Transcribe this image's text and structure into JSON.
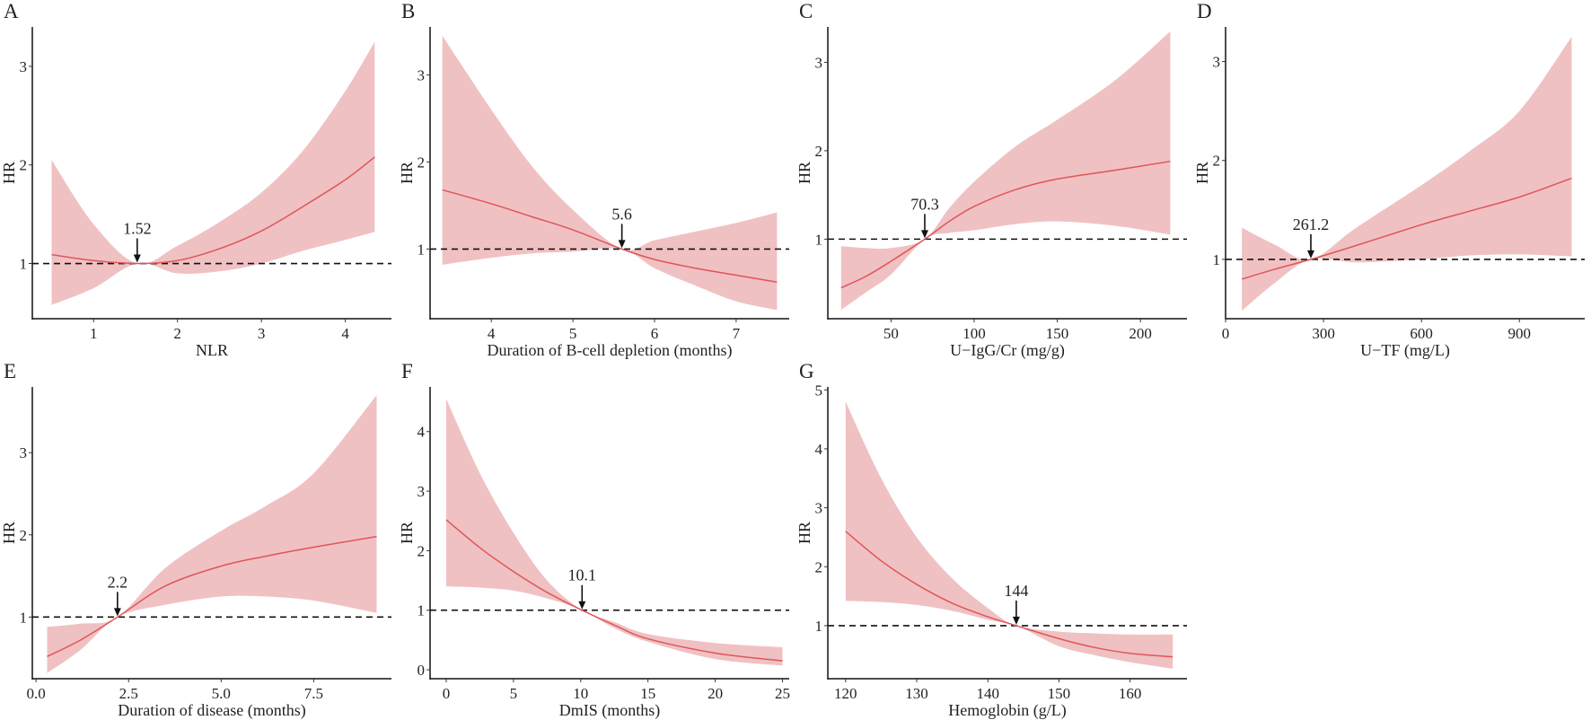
{
  "colors": {
    "band": "#f0c1c3",
    "line": "#e05558",
    "axis": "#111111"
  },
  "chart_data": [
    {
      "type": "line",
      "panel": "A",
      "xlabel": "NLR",
      "ylabel": "HR",
      "xlim": [
        0.27,
        4.55
      ],
      "ylim": [
        0.44,
        3.4
      ],
      "xticks": [
        1,
        2,
        3,
        4
      ],
      "xtick_labels": [
        "1",
        "2",
        "3",
        "4"
      ],
      "yticks": [
        1,
        2,
        3
      ],
      "ytick_labels": [
        "1",
        "2",
        "3"
      ],
      "reference": {
        "x": 1.52,
        "label": "1.52"
      },
      "x": [
        0.5,
        1.0,
        1.52,
        2.0,
        2.5,
        3.0,
        3.5,
        4.0,
        4.35
      ],
      "hr": [
        1.09,
        1.03,
        1.0,
        1.03,
        1.15,
        1.33,
        1.58,
        1.85,
        2.08
      ],
      "lower": [
        0.58,
        0.75,
        1.0,
        0.9,
        0.92,
        1.0,
        1.13,
        1.24,
        1.32
      ],
      "upper": [
        2.05,
        1.4,
        1.0,
        1.18,
        1.42,
        1.72,
        2.15,
        2.75,
        3.25
      ]
    },
    {
      "type": "line",
      "panel": "B",
      "xlabel": "Duration of B-cell depletion (months)",
      "ylabel": "HR",
      "xlim": [
        3.25,
        7.65
      ],
      "ylim": [
        0.2,
        3.55
      ],
      "xticks": [
        4,
        5,
        6,
        7
      ],
      "xtick_labels": [
        "4",
        "5",
        "6",
        "7"
      ],
      "yticks": [
        1,
        2,
        3
      ],
      "ytick_labels": [
        "1",
        "2",
        "3"
      ],
      "reference": {
        "x": 5.6,
        "label": "5.6"
      },
      "x": [
        3.4,
        4.0,
        4.5,
        5.0,
        5.6,
        6.0,
        6.5,
        7.0,
        7.5
      ],
      "hr": [
        1.68,
        1.52,
        1.37,
        1.22,
        1.0,
        0.88,
        0.78,
        0.7,
        0.62
      ],
      "lower": [
        0.82,
        0.9,
        0.95,
        0.97,
        1.0,
        0.78,
        0.58,
        0.4,
        0.3
      ],
      "upper": [
        3.45,
        2.6,
        1.95,
        1.45,
        1.0,
        1.1,
        1.2,
        1.3,
        1.42
      ]
    },
    {
      "type": "line",
      "panel": "C",
      "xlabel": "U−IgG/Cr (mg/g)",
      "ylabel": "HR",
      "xlim": [
        12,
        228
      ],
      "ylim": [
        0.1,
        3.4
      ],
      "xticks": [
        50,
        100,
        150,
        200
      ],
      "xtick_labels": [
        "50",
        "100",
        "150",
        "200"
      ],
      "yticks": [
        1,
        2,
        3
      ],
      "ytick_labels": [
        "1",
        "2",
        "3"
      ],
      "reference": {
        "x": 70.3,
        "label": "70.3"
      },
      "x": [
        20,
        35,
        50,
        70.3,
        85,
        100,
        125,
        150,
        185,
        218
      ],
      "hr": [
        0.45,
        0.58,
        0.75,
        1.0,
        1.2,
        1.37,
        1.56,
        1.68,
        1.78,
        1.88
      ],
      "lower": [
        0.2,
        0.4,
        0.6,
        1.0,
        1.07,
        1.1,
        1.17,
        1.2,
        1.15,
        1.05
      ],
      "upper": [
        0.92,
        0.9,
        0.9,
        1.0,
        1.35,
        1.65,
        2.05,
        2.35,
        2.8,
        3.35
      ]
    },
    {
      "type": "line",
      "panel": "D",
      "xlabel": "U−TF (mg/L)",
      "ylabel": "HR",
      "xlim": [
        0,
        1100
      ],
      "ylim": [
        0.4,
        3.35
      ],
      "xticks": [
        0,
        300,
        600,
        900
      ],
      "xtick_labels": [
        "0",
        "300",
        "600",
        "900"
      ],
      "yticks": [
        1,
        2,
        3
      ],
      "ytick_labels": [
        "1",
        "2",
        "3"
      ],
      "reference": {
        "x": 261.2,
        "label": "261.2"
      },
      "x": [
        50,
        150,
        261.2,
        400,
        600,
        750,
        900,
        1060
      ],
      "hr": [
        0.8,
        0.9,
        1.0,
        1.14,
        1.35,
        1.49,
        1.63,
        1.82
      ],
      "lower": [
        0.48,
        0.76,
        1.0,
        0.97,
        1.0,
        1.04,
        1.05,
        1.03
      ],
      "upper": [
        1.32,
        1.15,
        1.0,
        1.32,
        1.75,
        2.1,
        2.5,
        3.25
      ]
    },
    {
      "type": "line",
      "panel": "E",
      "xlabel": "Duration of disease (months)",
      "ylabel": "HR",
      "xlim": [
        -0.1,
        9.6
      ],
      "ylim": [
        0.25,
        3.8
      ],
      "xticks": [
        0,
        2.5,
        5,
        7.5
      ],
      "xtick_labels": [
        "0.0",
        "2.5",
        "5.0",
        "7.5"
      ],
      "yticks": [
        1,
        2,
        3
      ],
      "ytick_labels": [
        "1",
        "2",
        "3"
      ],
      "reference": {
        "x": 2.2,
        "label": "2.2"
      },
      "x": [
        0.3,
        1.2,
        2.2,
        3.5,
        5.0,
        6.2,
        7.5,
        9.2
      ],
      "hr": [
        0.52,
        0.72,
        1.0,
        1.38,
        1.62,
        1.74,
        1.85,
        1.98
      ],
      "lower": [
        0.32,
        0.6,
        1.0,
        1.15,
        1.25,
        1.25,
        1.2,
        1.05
      ],
      "upper": [
        0.88,
        0.92,
        1.0,
        1.6,
        2.05,
        2.35,
        2.75,
        3.7
      ]
    },
    {
      "type": "line",
      "panel": "F",
      "xlabel": "DmIS (months)",
      "ylabel": "HR",
      "xlim": [
        -1.2,
        25.5
      ],
      "ylim": [
        -0.15,
        4.75
      ],
      "xticks": [
        0,
        5,
        10,
        15,
        20,
        25
      ],
      "xtick_labels": [
        "0",
        "5",
        "10",
        "15",
        "20",
        "25"
      ],
      "yticks": [
        0,
        1,
        2,
        3,
        4
      ],
      "ytick_labels": [
        "0",
        "1",
        "2",
        "3",
        "4"
      ],
      "reference": {
        "x": 10.1,
        "label": "10.1"
      },
      "x": [
        0,
        2.5,
        5,
        7.5,
        10.1,
        12.5,
        15,
        20,
        25
      ],
      "hr": [
        2.52,
        2.05,
        1.65,
        1.3,
        1.0,
        0.75,
        0.52,
        0.28,
        0.15
      ],
      "lower": [
        1.4,
        1.38,
        1.33,
        1.2,
        1.0,
        0.7,
        0.47,
        0.18,
        0.07
      ],
      "upper": [
        4.55,
        3.3,
        2.3,
        1.5,
        1.0,
        0.8,
        0.6,
        0.45,
        0.38
      ]
    },
    {
      "type": "line",
      "panel": "G",
      "xlabel": "Hemoglobin (g/L)",
      "ylabel": "HR",
      "xlim": [
        117.5,
        168
      ],
      "ylim": [
        0.1,
        5.05
      ],
      "xticks": [
        120,
        130,
        140,
        150,
        160
      ],
      "xtick_labels": [
        "120",
        "130",
        "140",
        "150",
        "160"
      ],
      "yticks": [
        1,
        2,
        3,
        4,
        5
      ],
      "ytick_labels": [
        "1",
        "2",
        "3",
        "4",
        "5"
      ],
      "reference": {
        "x": 144,
        "label": "144"
      },
      "x": [
        120,
        125,
        130,
        135,
        140,
        144,
        150,
        155,
        160,
        166
      ],
      "hr": [
        2.6,
        2.1,
        1.7,
        1.38,
        1.15,
        1.0,
        0.78,
        0.63,
        0.53,
        0.47
      ],
      "lower": [
        1.42,
        1.4,
        1.35,
        1.25,
        1.1,
        1.0,
        0.65,
        0.5,
        0.38,
        0.27
      ],
      "upper": [
        4.8,
        3.5,
        2.5,
        1.8,
        1.3,
        1.0,
        0.9,
        0.87,
        0.85,
        0.85
      ]
    }
  ]
}
